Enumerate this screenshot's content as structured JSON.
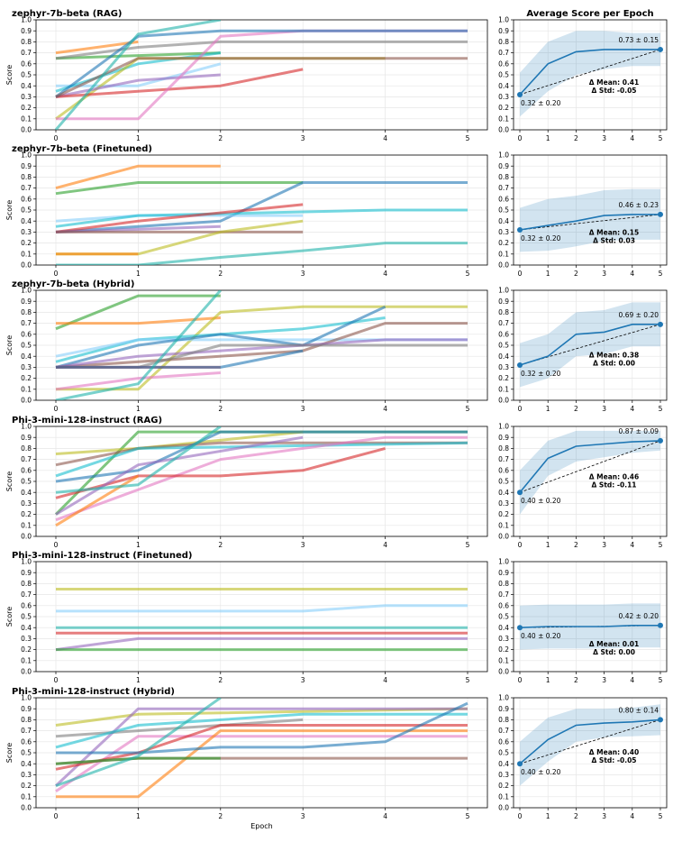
{
  "chart_data": {
    "type": "line",
    "xlabel": "Epoch",
    "ylabel": "Score",
    "ylim": [
      0,
      1
    ],
    "yticks": [
      "0.0",
      "0.1",
      "0.2",
      "0.3",
      "0.4",
      "0.5",
      "0.6",
      "0.7",
      "0.8",
      "0.9",
      "1.0"
    ],
    "xticks": [
      "0",
      "1",
      "2",
      "3",
      "4",
      "5"
    ],
    "right_title": "Average Score per Epoch",
    "colors": [
      "#1f77b4",
      "#ff7f0e",
      "#2ca02c",
      "#d62728",
      "#9467bd",
      "#8c564b",
      "#e377c2",
      "#7f7f7f",
      "#bcbd22",
      "#17becf",
      "#87cefa",
      "#20b2aa"
    ],
    "panels": [
      {
        "title": "zephyr-7b-beta (RAG)",
        "series": [
          {
            "c": 1,
            "x": [
              0,
              1
            ],
            "y": [
              0.7,
              0.8
            ]
          },
          {
            "c": 2,
            "x": [
              0,
              2
            ],
            "y": [
              0.65,
              0.7
            ]
          },
          {
            "c": 7,
            "x": [
              0,
              1,
              2,
              5
            ],
            "y": [
              0.65,
              0.75,
              0.8,
              0.8
            ]
          },
          {
            "c": 10,
            "x": [
              0,
              1,
              2
            ],
            "y": [
              0.4,
              0.4,
              0.6
            ]
          },
          {
            "c": 9,
            "x": [
              0,
              1,
              2
            ],
            "y": [
              0.35,
              0.6,
              0.7
            ]
          },
          {
            "c": 8,
            "x": [
              0,
              1,
              4
            ],
            "y": [
              0.1,
              0.65,
              0.65
            ]
          },
          {
            "c": 4,
            "x": [
              0,
              1,
              2
            ],
            "y": [
              0.3,
              0.45,
              0.5
            ]
          },
          {
            "c": 3,
            "x": [
              0,
              1,
              2,
              3
            ],
            "y": [
              0.3,
              0.35,
              0.4,
              0.55
            ]
          },
          {
            "c": 6,
            "x": [
              0,
              1,
              2,
              3,
              5
            ],
            "y": [
              0.1,
              0.1,
              0.85,
              0.9,
              0.9
            ]
          },
          {
            "c": 0,
            "x": [
              0,
              1,
              2,
              5
            ],
            "y": [
              0.3,
              0.85,
              0.9,
              0.9
            ]
          },
          {
            "c": 5,
            "x": [
              0,
              1,
              5
            ],
            "y": [
              0.3,
              0.65,
              0.65
            ]
          },
          {
            "c": 11,
            "x": [
              0,
              1,
              2
            ],
            "y": [
              0.0,
              0.87,
              1.0
            ]
          }
        ],
        "avg": {
          "mean": [
            0.32,
            0.6,
            0.71,
            0.73,
            0.73,
            0.73
          ],
          "lower": [
            0.12,
            0.35,
            0.5,
            0.55,
            0.58,
            0.58
          ],
          "upper": [
            0.52,
            0.8,
            0.9,
            0.9,
            0.88,
            0.88
          ],
          "start_label": "0.32 ± 0.20",
          "end_label": "0.73 ± 0.15",
          "delta_mean": "Δ Mean: 0.41",
          "delta_std": "Δ Std: -0.05"
        }
      },
      {
        "title": "zephyr-7b-beta (Finetuned)",
        "series": [
          {
            "c": 1,
            "x": [
              0,
              1,
              2
            ],
            "y": [
              0.7,
              0.9,
              0.9
            ]
          },
          {
            "c": 2,
            "x": [
              0,
              1,
              3
            ],
            "y": [
              0.65,
              0.75,
              0.75
            ]
          },
          {
            "c": 0,
            "x": [
              0,
              2,
              3,
              5
            ],
            "y": [
              0.3,
              0.4,
              0.75,
              0.75
            ]
          },
          {
            "c": 10,
            "x": [
              0,
              1,
              3
            ],
            "y": [
              0.4,
              0.45,
              0.45
            ]
          },
          {
            "c": 9,
            "x": [
              0,
              1,
              4,
              5
            ],
            "y": [
              0.35,
              0.45,
              0.5,
              0.5
            ]
          },
          {
            "c": 3,
            "x": [
              0,
              1,
              3
            ],
            "y": [
              0.3,
              0.4,
              0.55
            ]
          },
          {
            "c": 4,
            "x": [
              0,
              2
            ],
            "y": [
              0.3,
              0.35
            ]
          },
          {
            "c": 5,
            "x": [
              0,
              3
            ],
            "y": [
              0.3,
              0.3
            ]
          },
          {
            "c": 8,
            "x": [
              0,
              1,
              2,
              3
            ],
            "y": [
              0.1,
              0.1,
              0.3,
              0.4
            ]
          },
          {
            "c": 1,
            "x": [
              0,
              1
            ],
            "y": [
              0.1,
              0.1
            ]
          },
          {
            "c": 11,
            "x": [
              0,
              1,
              2,
              3,
              4,
              5
            ],
            "y": [
              0.0,
              0.0,
              0.07,
              0.13,
              0.2,
              0.2
            ]
          }
        ],
        "avg": {
          "mean": [
            0.32,
            0.36,
            0.4,
            0.45,
            0.46,
            0.46
          ],
          "lower": [
            0.12,
            0.13,
            0.17,
            0.22,
            0.23,
            0.23
          ],
          "upper": [
            0.52,
            0.6,
            0.63,
            0.68,
            0.69,
            0.69
          ],
          "start_label": "0.32 ± 0.20",
          "end_label": "0.46 ± 0.23",
          "delta_mean": "Δ Mean: 0.15",
          "delta_std": "Δ Std: 0.03"
        }
      },
      {
        "title": "zephyr-7b-beta (Hybrid)",
        "series": [
          {
            "c": 2,
            "x": [
              0,
              1,
              2
            ],
            "y": [
              0.65,
              0.95,
              0.95
            ]
          },
          {
            "c": 1,
            "x": [
              0,
              1,
              2
            ],
            "y": [
              0.7,
              0.7,
              0.75
            ]
          },
          {
            "c": 8,
            "x": [
              0,
              1,
              2,
              3,
              5
            ],
            "y": [
              0.1,
              0.1,
              0.8,
              0.85,
              0.85
            ]
          },
          {
            "c": 9,
            "x": [
              0,
              1,
              2,
              3,
              4
            ],
            "y": [
              0.35,
              0.55,
              0.6,
              0.65,
              0.75
            ]
          },
          {
            "c": 10,
            "x": [
              0,
              1,
              4,
              5
            ],
            "y": [
              0.4,
              0.55,
              0.55,
              0.55
            ]
          },
          {
            "c": 0,
            "x": [
              0,
              1,
              2,
              3,
              4
            ],
            "y": [
              0.3,
              0.5,
              0.6,
              0.5,
              0.85
            ]
          },
          {
            "c": 5,
            "x": [
              0,
              3,
              4,
              5
            ],
            "y": [
              0.3,
              0.45,
              0.7,
              0.7
            ]
          },
          {
            "c": 4,
            "x": [
              0,
              1,
              2,
              4,
              5
            ],
            "y": [
              0.3,
              0.4,
              0.45,
              0.55,
              0.55
            ]
          },
          {
            "c": 7,
            "x": [
              0,
              1,
              2,
              5
            ],
            "y": [
              0.3,
              0.3,
              0.5,
              0.5
            ]
          },
          {
            "c": 6,
            "x": [
              0,
              1,
              2
            ],
            "y": [
              0.1,
              0.2,
              0.25
            ]
          },
          {
            "c": 3,
            "x": [
              0,
              1,
              2
            ],
            "y": [
              0.3,
              0.3,
              0.3
            ]
          },
          {
            "c": 0,
            "x": [
              0,
              1,
              2,
              3
            ],
            "y": [
              0.3,
              0.3,
              0.3,
              0.45
            ]
          },
          {
            "c": 11,
            "x": [
              0,
              1,
              2
            ],
            "y": [
              0.0,
              0.15,
              1.0
            ]
          }
        ],
        "avg": {
          "mean": [
            0.32,
            0.4,
            0.6,
            0.62,
            0.69,
            0.69
          ],
          "lower": [
            0.12,
            0.2,
            0.4,
            0.42,
            0.49,
            0.49
          ],
          "upper": [
            0.52,
            0.6,
            0.8,
            0.82,
            0.89,
            0.89
          ],
          "start_label": "0.32 ± 0.20",
          "end_label": "0.69 ± 0.20",
          "delta_mean": "Δ Mean: 0.38",
          "delta_std": "Δ Std: 0.00"
        }
      },
      {
        "title": "Phi-3-mini-128-instruct (RAG)",
        "series": [
          {
            "c": 2,
            "x": [
              0,
              1,
              5
            ],
            "y": [
              0.2,
              0.95,
              0.95
            ]
          },
          {
            "c": 8,
            "x": [
              0,
              1,
              3
            ],
            "y": [
              0.75,
              0.8,
              0.95
            ]
          },
          {
            "c": 5,
            "x": [
              0,
              1,
              2,
              5
            ],
            "y": [
              0.65,
              0.8,
              0.85,
              0.85
            ]
          },
          {
            "c": 9,
            "x": [
              0,
              1,
              5
            ],
            "y": [
              0.55,
              0.8,
              0.85
            ]
          },
          {
            "c": 0,
            "x": [
              0,
              1,
              2,
              5
            ],
            "y": [
              0.5,
              0.6,
              0.95,
              0.95
            ]
          },
          {
            "c": 6,
            "x": [
              0,
              2,
              4,
              5
            ],
            "y": [
              0.15,
              0.7,
              0.9,
              0.9
            ]
          },
          {
            "c": 3,
            "x": [
              0,
              1,
              2,
              3,
              4
            ],
            "y": [
              0.35,
              0.55,
              0.55,
              0.6,
              0.8
            ]
          },
          {
            "c": 4,
            "x": [
              0,
              1,
              3
            ],
            "y": [
              0.2,
              0.65,
              0.9
            ]
          },
          {
            "c": 1,
            "x": [
              0,
              1
            ],
            "y": [
              0.1,
              0.55
            ]
          },
          {
            "c": 11,
            "x": [
              0,
              1,
              2
            ],
            "y": [
              0.4,
              0.47,
              1.0
            ]
          }
        ],
        "avg": {
          "mean": [
            0.4,
            0.71,
            0.82,
            0.84,
            0.86,
            0.87
          ],
          "lower": [
            0.2,
            0.55,
            0.68,
            0.72,
            0.76,
            0.78
          ],
          "upper": [
            0.6,
            0.87,
            0.96,
            0.96,
            0.96,
            0.96
          ],
          "start_label": "0.40 ± 0.20",
          "end_label": "0.87 ± 0.09",
          "delta_mean": "Δ Mean: 0.46",
          "delta_std": "Δ Std: -0.11"
        }
      },
      {
        "title": "Phi-3-mini-128-instruct (Finetuned)",
        "series": [
          {
            "c": 8,
            "x": [
              0,
              5
            ],
            "y": [
              0.75,
              0.75
            ]
          },
          {
            "c": 10,
            "x": [
              0,
              3,
              4,
              5
            ],
            "y": [
              0.55,
              0.55,
              0.6,
              0.6
            ]
          },
          {
            "c": 11,
            "x": [
              0,
              5
            ],
            "y": [
              0.4,
              0.4
            ]
          },
          {
            "c": 3,
            "x": [
              0,
              5
            ],
            "y": [
              0.35,
              0.35
            ]
          },
          {
            "c": 4,
            "x": [
              0,
              1,
              5
            ],
            "y": [
              0.2,
              0.3,
              0.3
            ]
          },
          {
            "c": 2,
            "x": [
              0,
              5
            ],
            "y": [
              0.2,
              0.2
            ]
          }
        ],
        "avg": {
          "mean": [
            0.4,
            0.41,
            0.41,
            0.41,
            0.42,
            0.42
          ],
          "lower": [
            0.2,
            0.21,
            0.21,
            0.21,
            0.22,
            0.22
          ],
          "upper": [
            0.6,
            0.61,
            0.61,
            0.61,
            0.62,
            0.62
          ],
          "start_label": "0.40 ± 0.20",
          "end_label": "0.42 ± 0.20",
          "delta_mean": "Δ Mean: 0.01",
          "delta_std": "Δ Std: 0.00"
        }
      },
      {
        "title": "Phi-3-mini-128-instruct (Hybrid)",
        "series": [
          {
            "c": 8,
            "x": [
              0,
              1,
              5
            ],
            "y": [
              0.75,
              0.85,
              0.9
            ]
          },
          {
            "c": 4,
            "x": [
              0,
              1,
              5
            ],
            "y": [
              0.2,
              0.9,
              0.9
            ]
          },
          {
            "c": 7,
            "x": [
              0,
              1,
              3
            ],
            "y": [
              0.65,
              0.7,
              0.8
            ]
          },
          {
            "c": 9,
            "x": [
              0,
              1,
              3,
              5
            ],
            "y": [
              0.55,
              0.75,
              0.85,
              0.85
            ]
          },
          {
            "c": 6,
            "x": [
              0,
              1,
              5
            ],
            "y": [
              0.15,
              0.65,
              0.65
            ]
          },
          {
            "c": 3,
            "x": [
              0,
              1,
              2,
              5
            ],
            "y": [
              0.35,
              0.5,
              0.75,
              0.75
            ]
          },
          {
            "c": 1,
            "x": [
              0,
              1,
              2,
              5
            ],
            "y": [
              0.1,
              0.1,
              0.7,
              0.7
            ]
          },
          {
            "c": 0,
            "x": [
              0,
              1,
              2,
              3,
              4,
              5
            ],
            "y": [
              0.5,
              0.5,
              0.55,
              0.55,
              0.6,
              0.95
            ]
          },
          {
            "c": 5,
            "x": [
              0,
              1,
              5
            ],
            "y": [
              0.4,
              0.45,
              0.45
            ]
          },
          {
            "c": 2,
            "x": [
              0,
              1,
              2
            ],
            "y": [
              0.4,
              0.45,
              0.45
            ]
          },
          {
            "c": 11,
            "x": [
              0,
              1,
              2
            ],
            "y": [
              0.2,
              0.47,
              1.0
            ]
          }
        ],
        "avg": {
          "mean": [
            0.4,
            0.62,
            0.75,
            0.77,
            0.78,
            0.8
          ],
          "lower": [
            0.2,
            0.42,
            0.6,
            0.64,
            0.65,
            0.66
          ],
          "upper": [
            0.6,
            0.82,
            0.9,
            0.9,
            0.91,
            0.94
          ],
          "start_label": "0.40 ± 0.20",
          "end_label": "0.80 ± 0.14",
          "delta_mean": "Δ Mean: 0.40",
          "delta_std": "Δ Std: -0.05"
        }
      }
    ]
  }
}
